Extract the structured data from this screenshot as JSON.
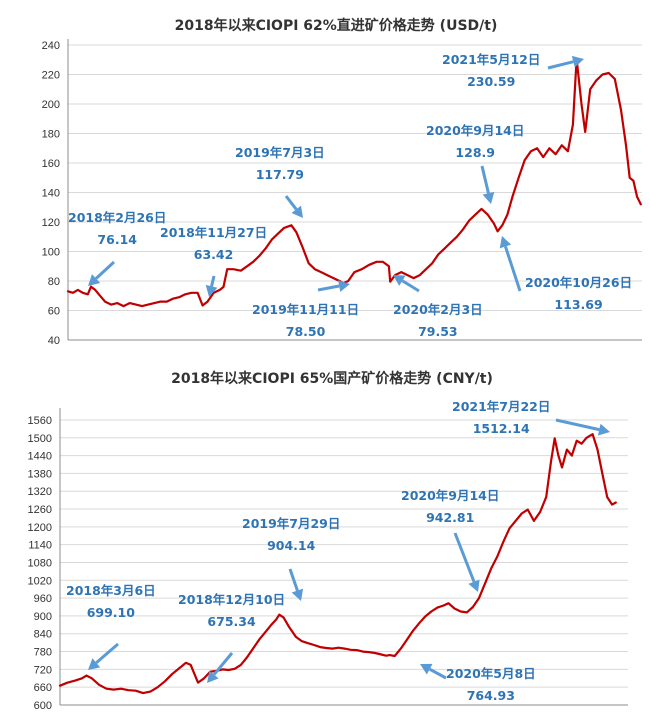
{
  "chart_data": [
    {
      "type": "line",
      "title": "2018年以来CIOPI 62%直进矿价格走势 (USD/t)",
      "xlabel": "",
      "ylabel": "",
      "ylim": [
        40,
        240
      ],
      "yticks": [
        40,
        60,
        80,
        100,
        120,
        140,
        160,
        180,
        200,
        220,
        240
      ],
      "x_unit": "months since 2018-01",
      "series": [
        {
          "name": "CIOPI 62% imported ore",
          "color": "#c00000",
          "points": [
            [
              0.0,
              73
            ],
            [
              0.4,
              72
            ],
            [
              0.8,
              74
            ],
            [
              1.2,
              72
            ],
            [
              1.6,
              71
            ],
            [
              1.86,
              76.14
            ],
            [
              2.2,
              74
            ],
            [
              2.6,
              70
            ],
            [
              3.0,
              66
            ],
            [
              3.5,
              64
            ],
            [
              4.0,
              65
            ],
            [
              4.5,
              63
            ],
            [
              5.0,
              65
            ],
            [
              5.5,
              64
            ],
            [
              6.0,
              63
            ],
            [
              6.5,
              64
            ],
            [
              7.0,
              65
            ],
            [
              7.5,
              66
            ],
            [
              8.0,
              66
            ],
            [
              8.5,
              68
            ],
            [
              9.0,
              69
            ],
            [
              9.5,
              71
            ],
            [
              10.0,
              72
            ],
            [
              10.5,
              72
            ],
            [
              10.9,
              63.42
            ],
            [
              11.3,
              66
            ],
            [
              11.8,
              72
            ],
            [
              12.3,
              74
            ],
            [
              12.6,
              76
            ],
            [
              12.9,
              88
            ],
            [
              13.4,
              88
            ],
            [
              14.0,
              87
            ],
            [
              14.5,
              90
            ],
            [
              15.0,
              93
            ],
            [
              15.5,
              97
            ],
            [
              16.0,
              102
            ],
            [
              16.5,
              108
            ],
            [
              17.0,
              112
            ],
            [
              17.5,
              116
            ],
            [
              18.1,
              117.79
            ],
            [
              18.5,
              113
            ],
            [
              19.0,
              103
            ],
            [
              19.5,
              92
            ],
            [
              20.0,
              88
            ],
            [
              20.5,
              86
            ],
            [
              21.0,
              84
            ],
            [
              21.5,
              82
            ],
            [
              22.0,
              80
            ],
            [
              22.3,
              78.5
            ],
            [
              22.7,
              80
            ],
            [
              23.2,
              86
            ],
            [
              23.8,
              88
            ],
            [
              24.4,
              91
            ],
            [
              25.0,
              93
            ],
            [
              25.5,
              93
            ],
            [
              26.0,
              90
            ],
            [
              26.1,
              79.53
            ],
            [
              26.5,
              84
            ],
            [
              27.0,
              86
            ],
            [
              27.5,
              84
            ],
            [
              28.0,
              82
            ],
            [
              28.5,
              84
            ],
            [
              29.0,
              88
            ],
            [
              29.5,
              92
            ],
            [
              30.0,
              98
            ],
            [
              30.5,
              102
            ],
            [
              31.0,
              106
            ],
            [
              31.5,
              110
            ],
            [
              32.0,
              115
            ],
            [
              32.5,
              121
            ],
            [
              33.0,
              125
            ],
            [
              33.5,
              128.9
            ],
            [
              34.0,
              125
            ],
            [
              34.5,
              119
            ],
            [
              34.8,
              113.69
            ],
            [
              35.2,
              118
            ],
            [
              35.6,
              125
            ],
            [
              36.0,
              137
            ],
            [
              36.5,
              150
            ],
            [
              37.0,
              162
            ],
            [
              37.5,
              168
            ],
            [
              38.0,
              170
            ],
            [
              38.5,
              164
            ],
            [
              39.0,
              170
            ],
            [
              39.5,
              166
            ],
            [
              40.0,
              172
            ],
            [
              40.5,
              168
            ],
            [
              40.9,
              186
            ],
            [
              41.2,
              230.59
            ],
            [
              41.6,
              200
            ],
            [
              41.9,
              181
            ],
            [
              42.3,
              210
            ],
            [
              42.8,
              216
            ],
            [
              43.3,
              220
            ],
            [
              43.8,
              221
            ],
            [
              44.3,
              217
            ],
            [
              44.8,
              196
            ],
            [
              45.2,
              172
            ],
            [
              45.5,
              150
            ],
            [
              45.8,
              148
            ],
            [
              46.1,
              137
            ],
            [
              46.4,
              132
            ]
          ]
        }
      ],
      "annotations": [
        {
          "date": "2018年2月26日",
          "value": "76.14",
          "x": 1.86,
          "y": 76.14
        },
        {
          "date": "2018年11月27日",
          "value": "63.42",
          "x": 10.9,
          "y": 63.42
        },
        {
          "date": "2019年7月3日",
          "value": "117.79",
          "x": 18.1,
          "y": 117.79
        },
        {
          "date": "2019年11月11日",
          "value": "78.50",
          "x": 22.3,
          "y": 78.5
        },
        {
          "date": "2020年2月3日",
          "value": "79.53",
          "x": 26.1,
          "y": 79.53
        },
        {
          "date": "2020年9月14日",
          "value": "128.9",
          "x": 33.5,
          "y": 128.9
        },
        {
          "date": "2020年10月26日",
          "value": "113.69",
          "x": 34.8,
          "y": 113.69
        },
        {
          "date": "2021年5月12日",
          "value": "230.59",
          "x": 41.2,
          "y": 230.59
        }
      ]
    },
    {
      "type": "line",
      "title": "2018年以来CIOPI 65%国产矿价格走势 (CNY/t)",
      "xlabel": "",
      "ylabel": "",
      "ylim": [
        600,
        1580
      ],
      "yticks": [
        600,
        660,
        720,
        780,
        840,
        900,
        960,
        1020,
        1080,
        1140,
        1200,
        1260,
        1320,
        1380,
        1440,
        1500,
        1560
      ],
      "x_unit": "months since 2018-01",
      "series": [
        {
          "name": "CIOPI 65% domestic ore",
          "color": "#c00000",
          "points": [
            [
              0.0,
              665
            ],
            [
              0.6,
              675
            ],
            [
              1.2,
              682
            ],
            [
              1.8,
              690
            ],
            [
              2.17,
              699.1
            ],
            [
              2.6,
              690
            ],
            [
              3.2,
              668
            ],
            [
              3.8,
              655
            ],
            [
              4.4,
              652
            ],
            [
              5.0,
              655
            ],
            [
              5.6,
              650
            ],
            [
              6.2,
              648
            ],
            [
              6.8,
              640
            ],
            [
              7.4,
              645
            ],
            [
              8.0,
              660
            ],
            [
              8.6,
              680
            ],
            [
              9.2,
              705
            ],
            [
              9.8,
              725
            ],
            [
              10.3,
              742
            ],
            [
              10.7,
              735
            ],
            [
              11.3,
              675.34
            ],
            [
              11.8,
              690
            ],
            [
              12.3,
              712
            ],
            [
              12.8,
              715
            ],
            [
              13.3,
              720
            ],
            [
              13.8,
              718
            ],
            [
              14.3,
              722
            ],
            [
              14.8,
              735
            ],
            [
              15.3,
              760
            ],
            [
              15.8,
              790
            ],
            [
              16.3,
              820
            ],
            [
              16.8,
              845
            ],
            [
              17.3,
              870
            ],
            [
              17.7,
              888
            ],
            [
              17.95,
              904.14
            ],
            [
              18.3,
              895
            ],
            [
              18.8,
              860
            ],
            [
              19.3,
              830
            ],
            [
              19.8,
              815
            ],
            [
              20.3,
              808
            ],
            [
              20.8,
              802
            ],
            [
              21.3,
              795
            ],
            [
              21.8,
              792
            ],
            [
              22.3,
              790
            ],
            [
              22.8,
              793
            ],
            [
              23.3,
              790
            ],
            [
              23.8,
              786
            ],
            [
              24.3,
              785
            ],
            [
              24.8,
              780
            ],
            [
              25.3,
              778
            ],
            [
              25.8,
              775
            ],
            [
              26.3,
              770
            ],
            [
              26.7,
              766
            ],
            [
              27.0,
              768
            ],
            [
              27.4,
              764.93
            ],
            [
              27.9,
              790
            ],
            [
              28.4,
              820
            ],
            [
              28.9,
              850
            ],
            [
              29.4,
              875
            ],
            [
              29.9,
              898
            ],
            [
              30.4,
              915
            ],
            [
              30.9,
              928
            ],
            [
              31.4,
              935
            ],
            [
              31.8,
              942.81
            ],
            [
              32.3,
              925
            ],
            [
              32.8,
              915
            ],
            [
              33.3,
              912
            ],
            [
              33.8,
              930
            ],
            [
              34.3,
              960
            ],
            [
              34.8,
              1010
            ],
            [
              35.3,
              1060
            ],
            [
              35.8,
              1100
            ],
            [
              36.3,
              1150
            ],
            [
              36.8,
              1195
            ],
            [
              37.3,
              1220
            ],
            [
              37.8,
              1245
            ],
            [
              38.3,
              1258
            ],
            [
              38.8,
              1220
            ],
            [
              39.3,
              1250
            ],
            [
              39.8,
              1300
            ],
            [
              40.2,
              1420
            ],
            [
              40.5,
              1498
            ],
            [
              40.8,
              1440
            ],
            [
              41.1,
              1400
            ],
            [
              41.5,
              1460
            ],
            [
              41.9,
              1440
            ],
            [
              42.3,
              1490
            ],
            [
              42.7,
              1480
            ],
            [
              43.1,
              1500
            ],
            [
              43.6,
              1512.14
            ],
            [
              44.0,
              1460
            ],
            [
              44.4,
              1380
            ],
            [
              44.8,
              1300
            ],
            [
              45.2,
              1275
            ],
            [
              45.5,
              1282
            ]
          ]
        }
      ],
      "annotations": [
        {
          "date": "2018年3月6日",
          "value": "699.10",
          "x": 2.17,
          "y": 699.1
        },
        {
          "date": "2018年12月10日",
          "value": "675.34",
          "x": 11.3,
          "y": 675.34
        },
        {
          "date": "2019年7月29日",
          "value": "904.14",
          "x": 17.95,
          "y": 904.14
        },
        {
          "date": "2020年5月8日",
          "value": "764.93",
          "x": 27.4,
          "y": 764.93
        },
        {
          "date": "2020年9月14日",
          "value": "942.81",
          "x": 31.8,
          "y": 942.81
        },
        {
          "date": "2021年7月22日",
          "value": "1512.14",
          "x": 43.6,
          "y": 1512.14
        }
      ]
    }
  ]
}
